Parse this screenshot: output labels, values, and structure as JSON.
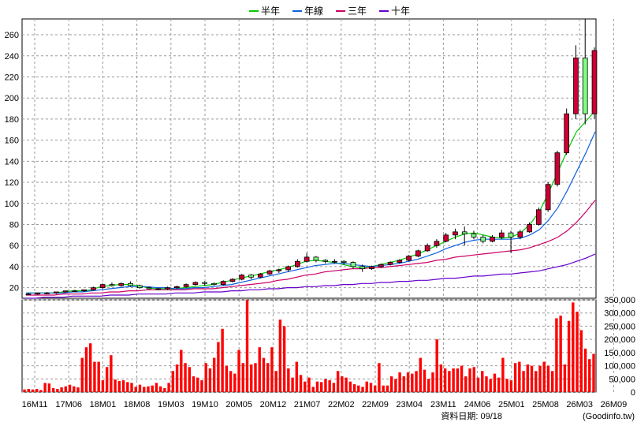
{
  "chart_data": [
    {
      "type": "candlestick-line",
      "legend_position": "top-center",
      "grid": true,
      "ylim": [
        10,
        275
      ],
      "y_ticks": [
        20,
        40,
        60,
        80,
        100,
        120,
        140,
        160,
        180,
        200,
        220,
        240,
        260
      ],
      "x_tick_labels": [
        "16M11",
        "17M06",
        "18M01",
        "18M08",
        "19M03",
        "19M10",
        "20M05",
        "20M12",
        "21M07",
        "22M02",
        "22M09",
        "23M04",
        "23M11",
        "24M06",
        "25M01",
        "25M08",
        "26M03",
        "26M09"
      ],
      "colors": {
        "up": "#e8c0c8",
        "down": "#80ff80",
        "half_year": "#00cc00",
        "year": "#1060e0",
        "three_year": "#cc0066",
        "ten_year": "#6600cc"
      },
      "series": [
        {
          "name": "半年",
          "color": "#00cc00",
          "values": [
            15,
            15,
            15,
            15,
            16,
            17,
            17,
            18,
            21,
            22,
            23,
            23,
            22,
            20,
            19,
            19,
            19,
            20,
            21,
            22,
            23,
            25,
            27,
            29,
            31,
            33,
            35,
            37,
            39,
            42,
            45,
            46,
            45,
            44,
            42,
            40,
            39,
            40,
            42,
            44,
            46,
            49,
            52,
            56,
            60,
            64,
            68,
            71,
            72,
            70,
            68,
            67,
            68,
            72,
            80,
            92,
            110,
            130,
            150,
            168,
            178,
            188
          ]
        },
        {
          "name": "年線",
          "color": "#1060e0",
          "values": [
            15,
            15,
            15,
            15,
            15,
            16,
            16,
            17,
            18,
            19,
            20,
            21,
            21,
            21,
            20,
            20,
            19,
            19,
            20,
            20,
            21,
            22,
            23,
            25,
            27,
            29,
            31,
            33,
            35,
            37,
            39,
            41,
            42,
            43,
            43,
            42,
            41,
            40,
            41,
            42,
            43,
            45,
            47,
            50,
            53,
            57,
            60,
            63,
            65,
            66,
            66,
            66,
            66,
            67,
            70,
            75,
            84,
            96,
            112,
            130,
            148,
            168
          ]
        },
        {
          "name": "三年",
          "color": "#cc0066",
          "values": [
            13,
            13,
            13,
            13,
            14,
            14,
            14,
            15,
            15,
            16,
            16,
            17,
            17,
            18,
            18,
            18,
            18,
            18,
            19,
            19,
            19,
            20,
            21,
            22,
            23,
            24,
            25,
            27,
            28,
            30,
            32,
            33,
            35,
            36,
            37,
            38,
            38,
            39,
            39,
            40,
            41,
            42,
            43,
            44,
            46,
            47,
            49,
            50,
            51,
            52,
            53,
            54,
            55,
            56,
            58,
            61,
            64,
            68,
            74,
            82,
            92,
            103
          ]
        },
        {
          "name": "十年",
          "color": "#6600cc",
          "values": [
            10,
            10,
            11,
            11,
            11,
            12,
            12,
            12,
            12,
            13,
            13,
            13,
            14,
            14,
            14,
            14,
            15,
            15,
            15,
            16,
            16,
            16,
            17,
            17,
            18,
            18,
            19,
            19,
            20,
            20,
            21,
            21,
            22,
            22,
            23,
            23,
            24,
            24,
            25,
            25,
            26,
            26,
            27,
            27,
            28,
            29,
            29,
            30,
            31,
            31,
            32,
            33,
            33,
            34,
            35,
            36,
            38,
            40,
            42,
            45,
            48,
            52
          ]
        }
      ],
      "candles": [
        {
          "o": 14,
          "h": 15,
          "l": 13,
          "c": 14
        },
        {
          "o": 14,
          "h": 15,
          "l": 13,
          "c": 15
        },
        {
          "o": 15,
          "h": 16,
          "l": 14,
          "c": 15
        },
        {
          "o": 15,
          "h": 16,
          "l": 14,
          "c": 16
        },
        {
          "o": 16,
          "h": 17,
          "l": 15,
          "c": 17
        },
        {
          "o": 17,
          "h": 18,
          "l": 16,
          "c": 17
        },
        {
          "o": 17,
          "h": 18,
          "l": 16,
          "c": 18
        },
        {
          "o": 18,
          "h": 21,
          "l": 17,
          "c": 20
        },
        {
          "o": 20,
          "h": 24,
          "l": 19,
          "c": 23
        },
        {
          "o": 23,
          "h": 25,
          "l": 21,
          "c": 22
        },
        {
          "o": 22,
          "h": 25,
          "l": 21,
          "c": 24
        },
        {
          "o": 24,
          "h": 26,
          "l": 21,
          "c": 22
        },
        {
          "o": 22,
          "h": 23,
          "l": 19,
          "c": 20
        },
        {
          "o": 20,
          "h": 21,
          "l": 18,
          "c": 19
        },
        {
          "o": 19,
          "h": 20,
          "l": 18,
          "c": 19
        },
        {
          "o": 19,
          "h": 21,
          "l": 18,
          "c": 20
        },
        {
          "o": 20,
          "h": 22,
          "l": 19,
          "c": 21
        },
        {
          "o": 21,
          "h": 24,
          "l": 20,
          "c": 23
        },
        {
          "o": 23,
          "h": 26,
          "l": 22,
          "c": 25
        },
        {
          "o": 25,
          "h": 26,
          "l": 22,
          "c": 24
        },
        {
          "o": 24,
          "h": 25,
          "l": 22,
          "c": 23
        },
        {
          "o": 23,
          "h": 27,
          "l": 22,
          "c": 26
        },
        {
          "o": 26,
          "h": 29,
          "l": 25,
          "c": 28
        },
        {
          "o": 28,
          "h": 33,
          "l": 27,
          "c": 32
        },
        {
          "o": 32,
          "h": 33,
          "l": 28,
          "c": 30
        },
        {
          "o": 30,
          "h": 34,
          "l": 29,
          "c": 33
        },
        {
          "o": 33,
          "h": 37,
          "l": 32,
          "c": 36
        },
        {
          "o": 36,
          "h": 38,
          "l": 34,
          "c": 37
        },
        {
          "o": 37,
          "h": 41,
          "l": 35,
          "c": 40
        },
        {
          "o": 40,
          "h": 47,
          "l": 39,
          "c": 45
        },
        {
          "o": 45,
          "h": 53,
          "l": 44,
          "c": 49
        },
        {
          "o": 49,
          "h": 50,
          "l": 44,
          "c": 46
        },
        {
          "o": 46,
          "h": 47,
          "l": 43,
          "c": 45
        },
        {
          "o": 45,
          "h": 47,
          "l": 43,
          "c": 45
        },
        {
          "o": 45,
          "h": 46,
          "l": 42,
          "c": 44
        },
        {
          "o": 44,
          "h": 45,
          "l": 38,
          "c": 40
        },
        {
          "o": 40,
          "h": 42,
          "l": 35,
          "c": 38
        },
        {
          "o": 38,
          "h": 41,
          "l": 37,
          "c": 40
        },
        {
          "o": 40,
          "h": 43,
          "l": 39,
          "c": 42
        },
        {
          "o": 42,
          "h": 45,
          "l": 41,
          "c": 44
        },
        {
          "o": 44,
          "h": 47,
          "l": 43,
          "c": 46
        },
        {
          "o": 46,
          "h": 51,
          "l": 45,
          "c": 50
        },
        {
          "o": 50,
          "h": 56,
          "l": 49,
          "c": 55
        },
        {
          "o": 55,
          "h": 62,
          "l": 54,
          "c": 60
        },
        {
          "o": 60,
          "h": 66,
          "l": 58,
          "c": 64
        },
        {
          "o": 64,
          "h": 72,
          "l": 63,
          "c": 70
        },
        {
          "o": 70,
          "h": 76,
          "l": 66,
          "c": 73
        },
        {
          "o": 73,
          "h": 78,
          "l": 60,
          "c": 71
        },
        {
          "o": 71,
          "h": 74,
          "l": 66,
          "c": 68
        },
        {
          "o": 68,
          "h": 70,
          "l": 62,
          "c": 64
        },
        {
          "o": 64,
          "h": 70,
          "l": 63,
          "c": 68
        },
        {
          "o": 68,
          "h": 75,
          "l": 66,
          "c": 72
        },
        {
          "o": 72,
          "h": 74,
          "l": 53,
          "c": 68
        },
        {
          "o": 68,
          "h": 75,
          "l": 66,
          "c": 73
        },
        {
          "o": 73,
          "h": 82,
          "l": 72,
          "c": 80
        },
        {
          "o": 80,
          "h": 96,
          "l": 79,
          "c": 94
        },
        {
          "o": 94,
          "h": 120,
          "l": 92,
          "c": 118
        },
        {
          "o": 118,
          "h": 150,
          "l": 116,
          "c": 148
        },
        {
          "o": 148,
          "h": 190,
          "l": 146,
          "c": 185
        },
        {
          "o": 185,
          "h": 250,
          "l": 180,
          "c": 238
        },
        {
          "o": 238,
          "h": 275,
          "l": 175,
          "c": 185
        },
        {
          "o": 185,
          "h": 248,
          "l": 180,
          "c": 245
        }
      ]
    },
    {
      "type": "bar",
      "series_name": "volume",
      "color": "#ff0000",
      "ylim": [
        0,
        350000
      ],
      "y_ticks": [
        0,
        50000,
        100000,
        150000,
        200000,
        250000,
        300000,
        350000
      ],
      "y_tick_labels": [
        "0",
        "50,000",
        "100,000",
        "150,000",
        "200,000",
        "250,000",
        "300,000",
        "350,000"
      ],
      "values": [
        10000,
        12000,
        10000,
        12000,
        8000,
        35000,
        33000,
        15000,
        12000,
        18000,
        22000,
        28000,
        22000,
        18000,
        130000,
        170000,
        185000,
        115000,
        115000,
        45000,
        95000,
        140000,
        48000,
        42000,
        45000,
        38000,
        35000,
        20000,
        28000,
        20000,
        22000,
        25000,
        35000,
        22000,
        15000,
        35000,
        80000,
        105000,
        160000,
        110000,
        95000,
        60000,
        55000,
        45000,
        110000,
        90000,
        130000,
        190000,
        240000,
        100000,
        80000,
        70000,
        160000,
        110000,
        350000,
        105000,
        110000,
        170000,
        130000,
        110000,
        170000,
        80000,
        275000,
        250000,
        90000,
        55000,
        115000,
        65000,
        40000,
        55000,
        20000,
        40000,
        38000,
        50000,
        45000,
        35000,
        80000,
        60000,
        55000,
        40000,
        30000,
        25000,
        20000,
        40000,
        35000,
        25000,
        110000,
        25000,
        25000,
        60000,
        50000,
        75000,
        60000,
        75000,
        70000,
        80000,
        130000,
        85000,
        50000,
        75000,
        200000,
        105000,
        90000,
        80000,
        90000,
        90000,
        100000,
        60000,
        90000,
        95000,
        55000,
        80000,
        60000,
        50000,
        70000,
        55000,
        130000,
        50000,
        45000,
        110000,
        115000,
        80000,
        105000,
        100000,
        80000,
        100000,
        115000,
        100000,
        80000,
        280000,
        290000,
        105000,
        270000,
        340000,
        305000,
        235000,
        165000,
        125000,
        145000
      ]
    }
  ],
  "footer_label": "資料日期: 09/18",
  "footer_source": "(Goodinfo.tw)"
}
